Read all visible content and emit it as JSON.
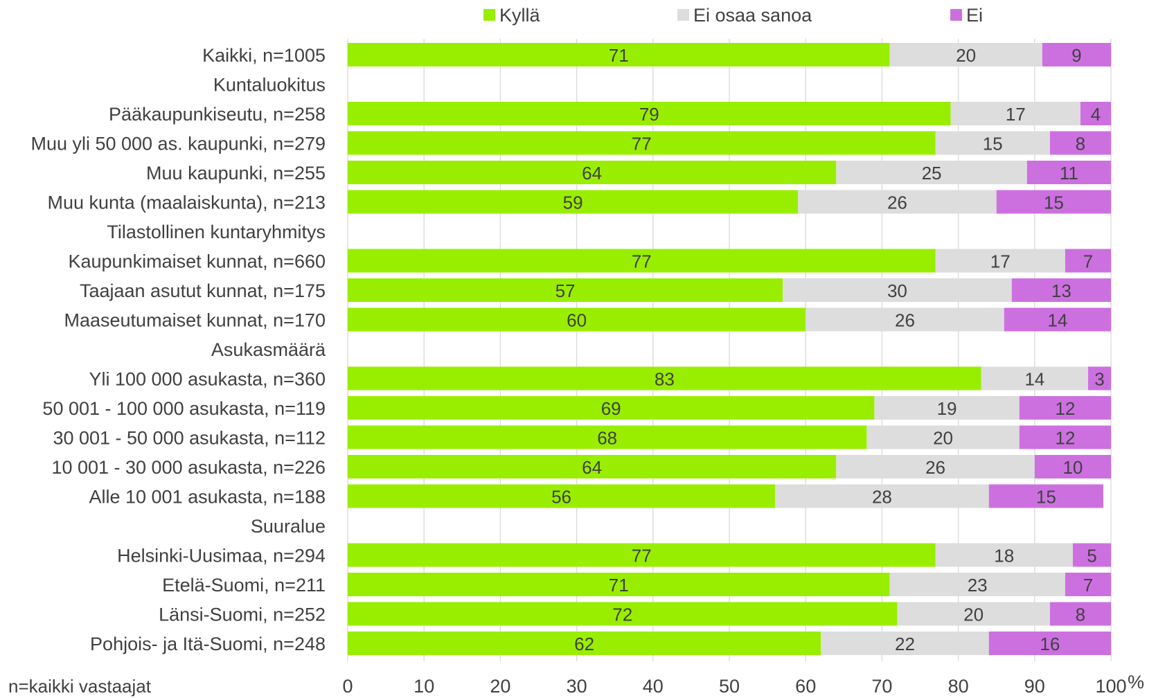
{
  "chart_data": {
    "type": "bar",
    "orientation": "horizontal",
    "stacked": true,
    "categories": [
      "Kaikki, n=1005",
      "Kuntaluokitus",
      "Pääkaupunkiseutu, n=258",
      "Muu yli 50 000 as. kaupunki, n=279",
      "Muu kaupunki, n=255",
      "Muu kunta (maalaiskunta), n=213",
      "Tilastollinen kuntaryhmitys",
      "Kaupunkimaiset kunnat, n=660",
      "Taajaan asutut kunnat, n=175",
      "Maaseutumaiset kunnat, n=170",
      "Asukasmäärä",
      "Yli 100 000 asukasta, n=360",
      "50 001 - 100 000 asukasta, n=119",
      "30 001 - 50 000 asukasta, n=112",
      "10 001 - 30 000 asukasta, n=226",
      "Alle 10 001 asukasta, n=188",
      "Suuralue",
      "Helsinki-Uusimaa, n=294",
      "Etelä-Suomi, n=211",
      "Länsi-Suomi, n=252",
      "Pohjois- ja Itä-Suomi, n=248"
    ],
    "series": [
      {
        "name": "Kyllä",
        "color": "#99ee00",
        "values": [
          71,
          null,
          79,
          77,
          64,
          59,
          null,
          77,
          57,
          60,
          null,
          83,
          69,
          68,
          64,
          56,
          null,
          77,
          71,
          72,
          62
        ]
      },
      {
        "name": "Ei osaa sanoa",
        "color": "#dddddd",
        "values": [
          20,
          null,
          17,
          15,
          25,
          26,
          null,
          17,
          30,
          26,
          null,
          14,
          19,
          20,
          26,
          28,
          null,
          18,
          23,
          20,
          22
        ]
      },
      {
        "name": "Ei",
        "color": "#cc70e0",
        "values": [
          9,
          null,
          4,
          8,
          11,
          15,
          null,
          7,
          13,
          14,
          null,
          3,
          12,
          12,
          10,
          15,
          null,
          5,
          7,
          8,
          16
        ]
      }
    ],
    "xlim": [
      0,
      100
    ],
    "xticks": [
      "0",
      "10",
      "20",
      "30",
      "40",
      "50",
      "60",
      "70",
      "80",
      "90",
      "100"
    ],
    "xunit": "%",
    "grid": "vertical",
    "legend_position": "top",
    "note": "n=kaikki vastaajat"
  }
}
